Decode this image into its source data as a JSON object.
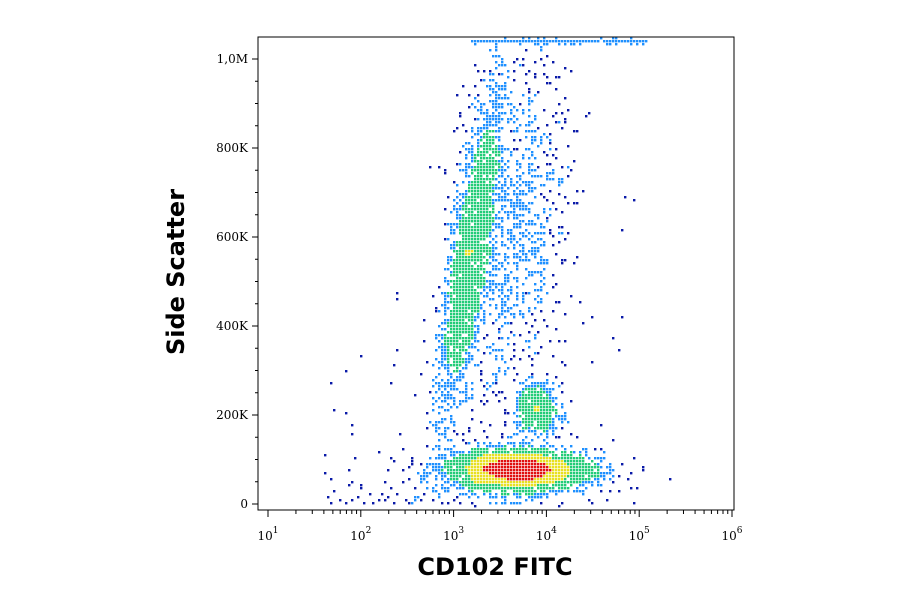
{
  "chart_data": {
    "type": "scatter",
    "title": "",
    "xlabel": "CD102 FITC",
    "ylabel": "Side Scatter",
    "x_scale": "log",
    "xlim": [
      10,
      1000000
    ],
    "ylim": [
      0,
      1050000
    ],
    "grid": false,
    "legend": "none",
    "rendering": "density dot plot (blue = low density, green/yellow = medium, red = high)",
    "x_ticks": [
      {
        "value": 10,
        "base": "10",
        "exp": "1"
      },
      {
        "value": 100,
        "base": "10",
        "exp": "2"
      },
      {
        "value": 1000,
        "base": "10",
        "exp": "3"
      },
      {
        "value": 10000,
        "base": "10",
        "exp": "4"
      },
      {
        "value": 100000,
        "base": "10",
        "exp": "5"
      },
      {
        "value": 1000000,
        "base": "10",
        "exp": "6"
      }
    ],
    "y_ticks": [
      {
        "value": 0,
        "label": "0"
      },
      {
        "value": 200000,
        "label": "200K"
      },
      {
        "value": 400000,
        "label": "400K"
      },
      {
        "value": 600000,
        "label": "600K"
      },
      {
        "value": 800000,
        "label": "800K"
      },
      {
        "value": 1000000,
        "label": "1,0M"
      }
    ],
    "populations": [
      {
        "x_center": 5000,
        "y_center": 75000,
        "x_spread_decades": 0.38,
        "y_spread": 22000,
        "peak_density": "high"
      },
      {
        "x_center": 1500,
        "y_center": 560000,
        "x_spread_decades": 0.1,
        "y_spread": 180000,
        "tilt": "upward to the right",
        "peak_density": "medium"
      },
      {
        "x_center": 8000,
        "y_center": 210000,
        "x_spread_decades": 0.12,
        "y_spread": 30000,
        "peak_density": "medium-low"
      },
      {
        "x_center": 4000,
        "y_center": 600000,
        "x_spread_decades": 0.3,
        "y_spread": 200000,
        "peak_density": "low"
      }
    ],
    "colors": {
      "low": "#0a1aa8",
      "medium_low": "#1e90ff",
      "medium": "#22cc77",
      "medium_high": "#e8e020",
      "high": "#e01010",
      "axis": "#000000"
    }
  }
}
